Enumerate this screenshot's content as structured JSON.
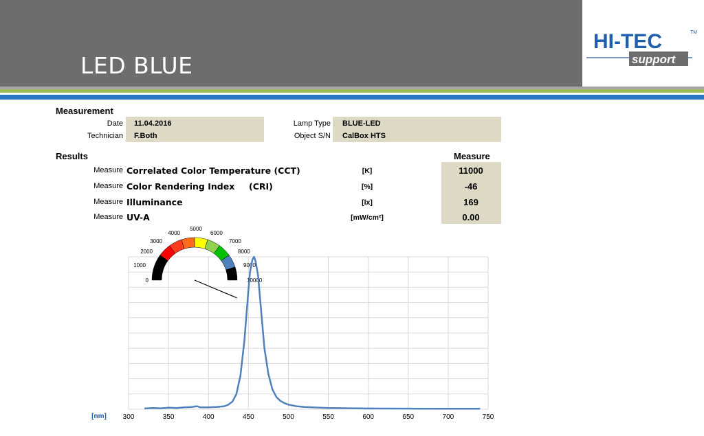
{
  "slide": {
    "title": "LED BLUE"
  },
  "logo": {
    "main": "HI-TEC",
    "tm": "TM",
    "sub": "support"
  },
  "measurement": {
    "heading": "Measurement",
    "date_label": "Date",
    "date_value": "11.04.2016",
    "technician_label": "Technician",
    "technician_value": "F.Both",
    "lamp_type_label": "Lamp Type",
    "lamp_type_value": "BLUE-LED",
    "object_sn_label": "Object S/N",
    "object_sn_value": "CalBox HTS"
  },
  "results": {
    "heading": "Results",
    "measure_header": "Measure",
    "rows": [
      {
        "prefix": "Measure",
        "name": "Correlated Color Temperature (CCT)",
        "abbr": "",
        "unit": "[K]",
        "value": "11000"
      },
      {
        "prefix": "Measure",
        "name": "Color Rendering Index",
        "abbr": "(CRI)",
        "unit": "[%]",
        "value": "-46"
      },
      {
        "prefix": "Measure",
        "name": "Illuminance",
        "abbr": "",
        "unit": "[lx]",
        "value": "169"
      },
      {
        "prefix": "Measure",
        "name": "UV-A",
        "abbr": "",
        "unit": "[mW/cm²]",
        "value": "0.00"
      }
    ]
  },
  "gauge": {
    "labels": [
      "0",
      "1000",
      "2000",
      "3000",
      "4000",
      "5000",
      "6000",
      "7000",
      "8000",
      "9000",
      "10000"
    ],
    "segment_colors": [
      "#000000",
      "#000000",
      "#ff0000",
      "#ff3b1f",
      "#ff6a1a",
      "#ffff00",
      "#92d050",
      "#00c000",
      "#4f81bd",
      "#000000"
    ],
    "value": 11000,
    "min": 0,
    "max": 10000
  },
  "chart_data": {
    "type": "line",
    "xlabel": "[nm]",
    "xlim": [
      300,
      750
    ],
    "ylim": [
      0,
      1
    ],
    "x_ticks": [
      300,
      350,
      400,
      450,
      500,
      550,
      600,
      650,
      700,
      750
    ],
    "grid": true,
    "line_color": "#4f81bd",
    "series": [
      {
        "x": [
          320,
          330,
          340,
          350,
          360,
          370,
          380,
          385,
          390,
          400,
          410,
          420,
          425,
          430,
          435,
          440,
          445,
          450,
          452,
          455,
          457,
          459,
          462,
          465,
          470,
          475,
          480,
          485,
          490,
          495,
          500,
          510,
          520,
          530,
          550,
          600,
          650,
          700,
          740
        ],
        "values": [
          0.005,
          0.008,
          0.006,
          0.01,
          0.008,
          0.012,
          0.015,
          0.02,
          0.012,
          0.012,
          0.015,
          0.02,
          0.03,
          0.05,
          0.1,
          0.22,
          0.45,
          0.78,
          0.9,
          0.98,
          1.0,
          0.97,
          0.88,
          0.7,
          0.4,
          0.23,
          0.13,
          0.08,
          0.055,
          0.04,
          0.03,
          0.02,
          0.015,
          0.012,
          0.008,
          0.005,
          0.004,
          0.003,
          0.003
        ]
      }
    ]
  }
}
